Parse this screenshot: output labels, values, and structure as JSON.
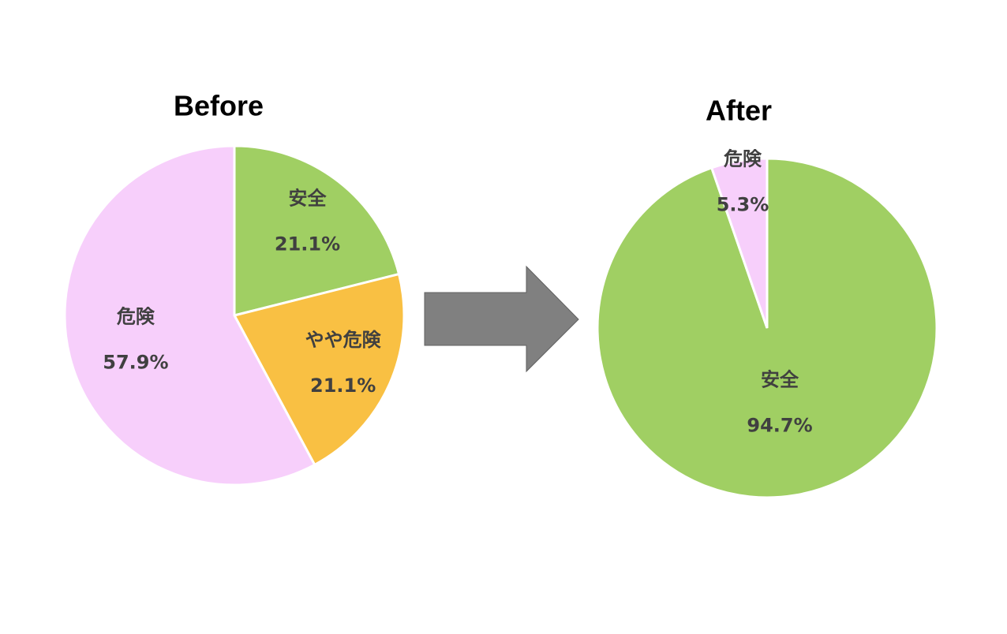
{
  "chart_data": [
    {
      "type": "pie",
      "title": "Before",
      "categories": [
        "安全",
        "やや危険",
        "危険"
      ],
      "values": [
        21.1,
        21.1,
        57.9
      ],
      "value_labels": [
        "21.1%",
        "21.1%",
        "57.9%"
      ],
      "colors": [
        "#a0cf63",
        "#f9c043",
        "#f7cffb"
      ]
    },
    {
      "type": "pie",
      "title": "After",
      "categories": [
        "安全",
        "危険"
      ],
      "values": [
        94.7,
        5.3
      ],
      "value_labels": [
        "94.7%",
        "5.3%"
      ],
      "colors": [
        "#a0cf63",
        "#f7cffb"
      ]
    }
  ]
}
